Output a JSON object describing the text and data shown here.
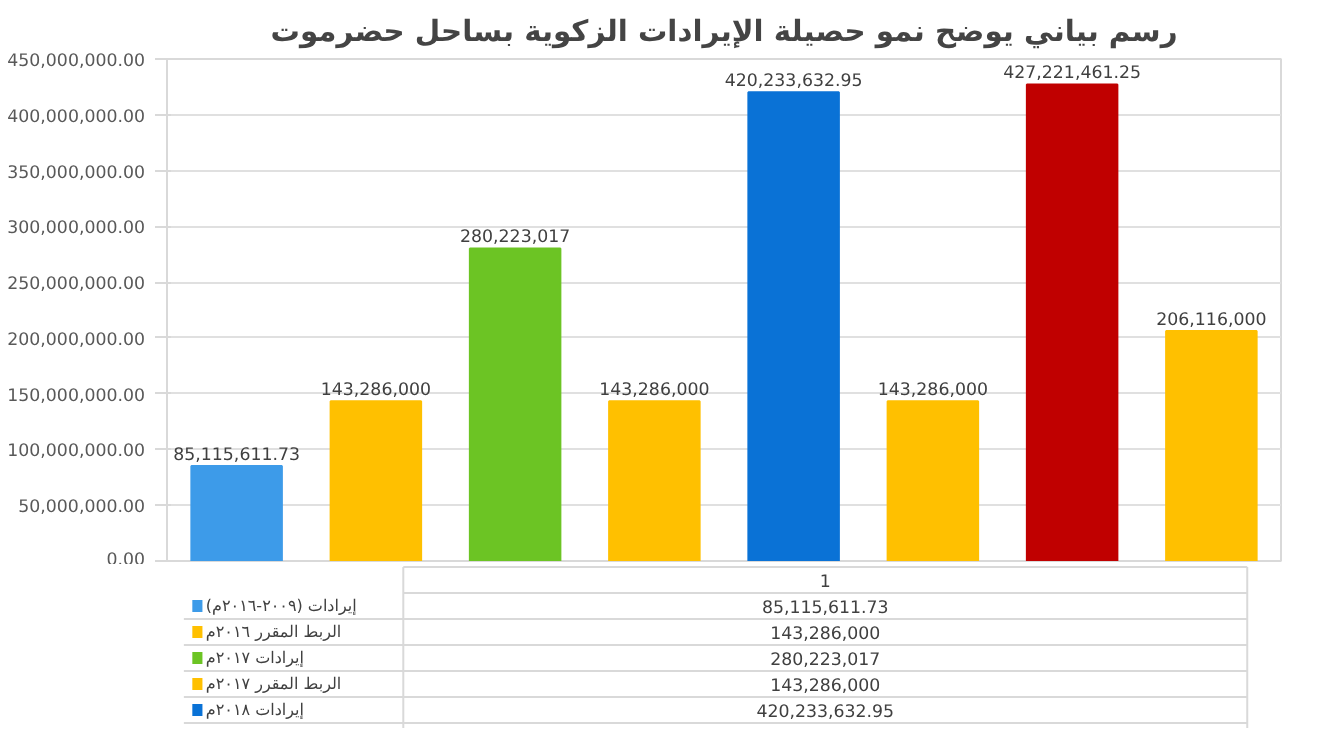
{
  "chart_data": {
    "type": "bar",
    "title": "رسم بياني يوضح نمو حصيلة الإيرادات الزكوية بساحل حضرموت",
    "categories": [
      "1"
    ],
    "series": [
      {
        "name": "إيرادات (٢٠٠٩-٢٠١٦م)",
        "color": "#3d9be9",
        "values": [
          85115611.73
        ],
        "value_labels": [
          "85,115,611.73"
        ]
      },
      {
        "name": "الربط المقرر ٢٠١٦م",
        "color": "#ffc000",
        "values": [
          143286000
        ],
        "value_labels": [
          "143,286,000"
        ]
      },
      {
        "name": "إيرادات ٢٠١٧م",
        "color": "#6cc424",
        "values": [
          280223017
        ],
        "value_labels": [
          "280,223,017"
        ]
      },
      {
        "name": "الربط المقرر ٢٠١٧م",
        "color": "#ffc000",
        "values": [
          143286000
        ],
        "value_labels": [
          "143,286,000"
        ]
      },
      {
        "name": "إيرادات ٢٠١٨م",
        "color": "#0a72d6",
        "values": [
          420233632.95
        ],
        "value_labels": [
          "420,233,632.95"
        ]
      },
      {
        "color": "#ffc000",
        "values": [
          143286000
        ],
        "value_labels": [
          "143,286,000"
        ]
      },
      {
        "color": "#c00000",
        "values": [
          427221461.25
        ],
        "value_labels": [
          "427,221,461.25"
        ]
      },
      {
        "color": "#ffc000",
        "values": [
          206116000
        ],
        "value_labels": [
          "206,116,000"
        ]
      }
    ],
    "ylim": [
      0,
      450000000
    ],
    "yticks": [
      {
        "value": 0,
        "label": "0.00"
      },
      {
        "value": 50000000,
        "label": "50,000,000.00"
      },
      {
        "value": 100000000,
        "label": "100,000,000.00"
      },
      {
        "value": 150000000,
        "label": "150,000,000.00"
      },
      {
        "value": 200000000,
        "label": "200,000,000.00"
      },
      {
        "value": 250000000,
        "label": "250,000,000.00"
      },
      {
        "value": 300000000,
        "label": "300,000,000.00"
      },
      {
        "value": 350000000,
        "label": "350,000,000.00"
      },
      {
        "value": 400000000,
        "label": "400,000,000.00"
      },
      {
        "value": 450000000,
        "label": "450,000,000.00"
      }
    ],
    "grid": "y",
    "legend": "bottom"
  }
}
